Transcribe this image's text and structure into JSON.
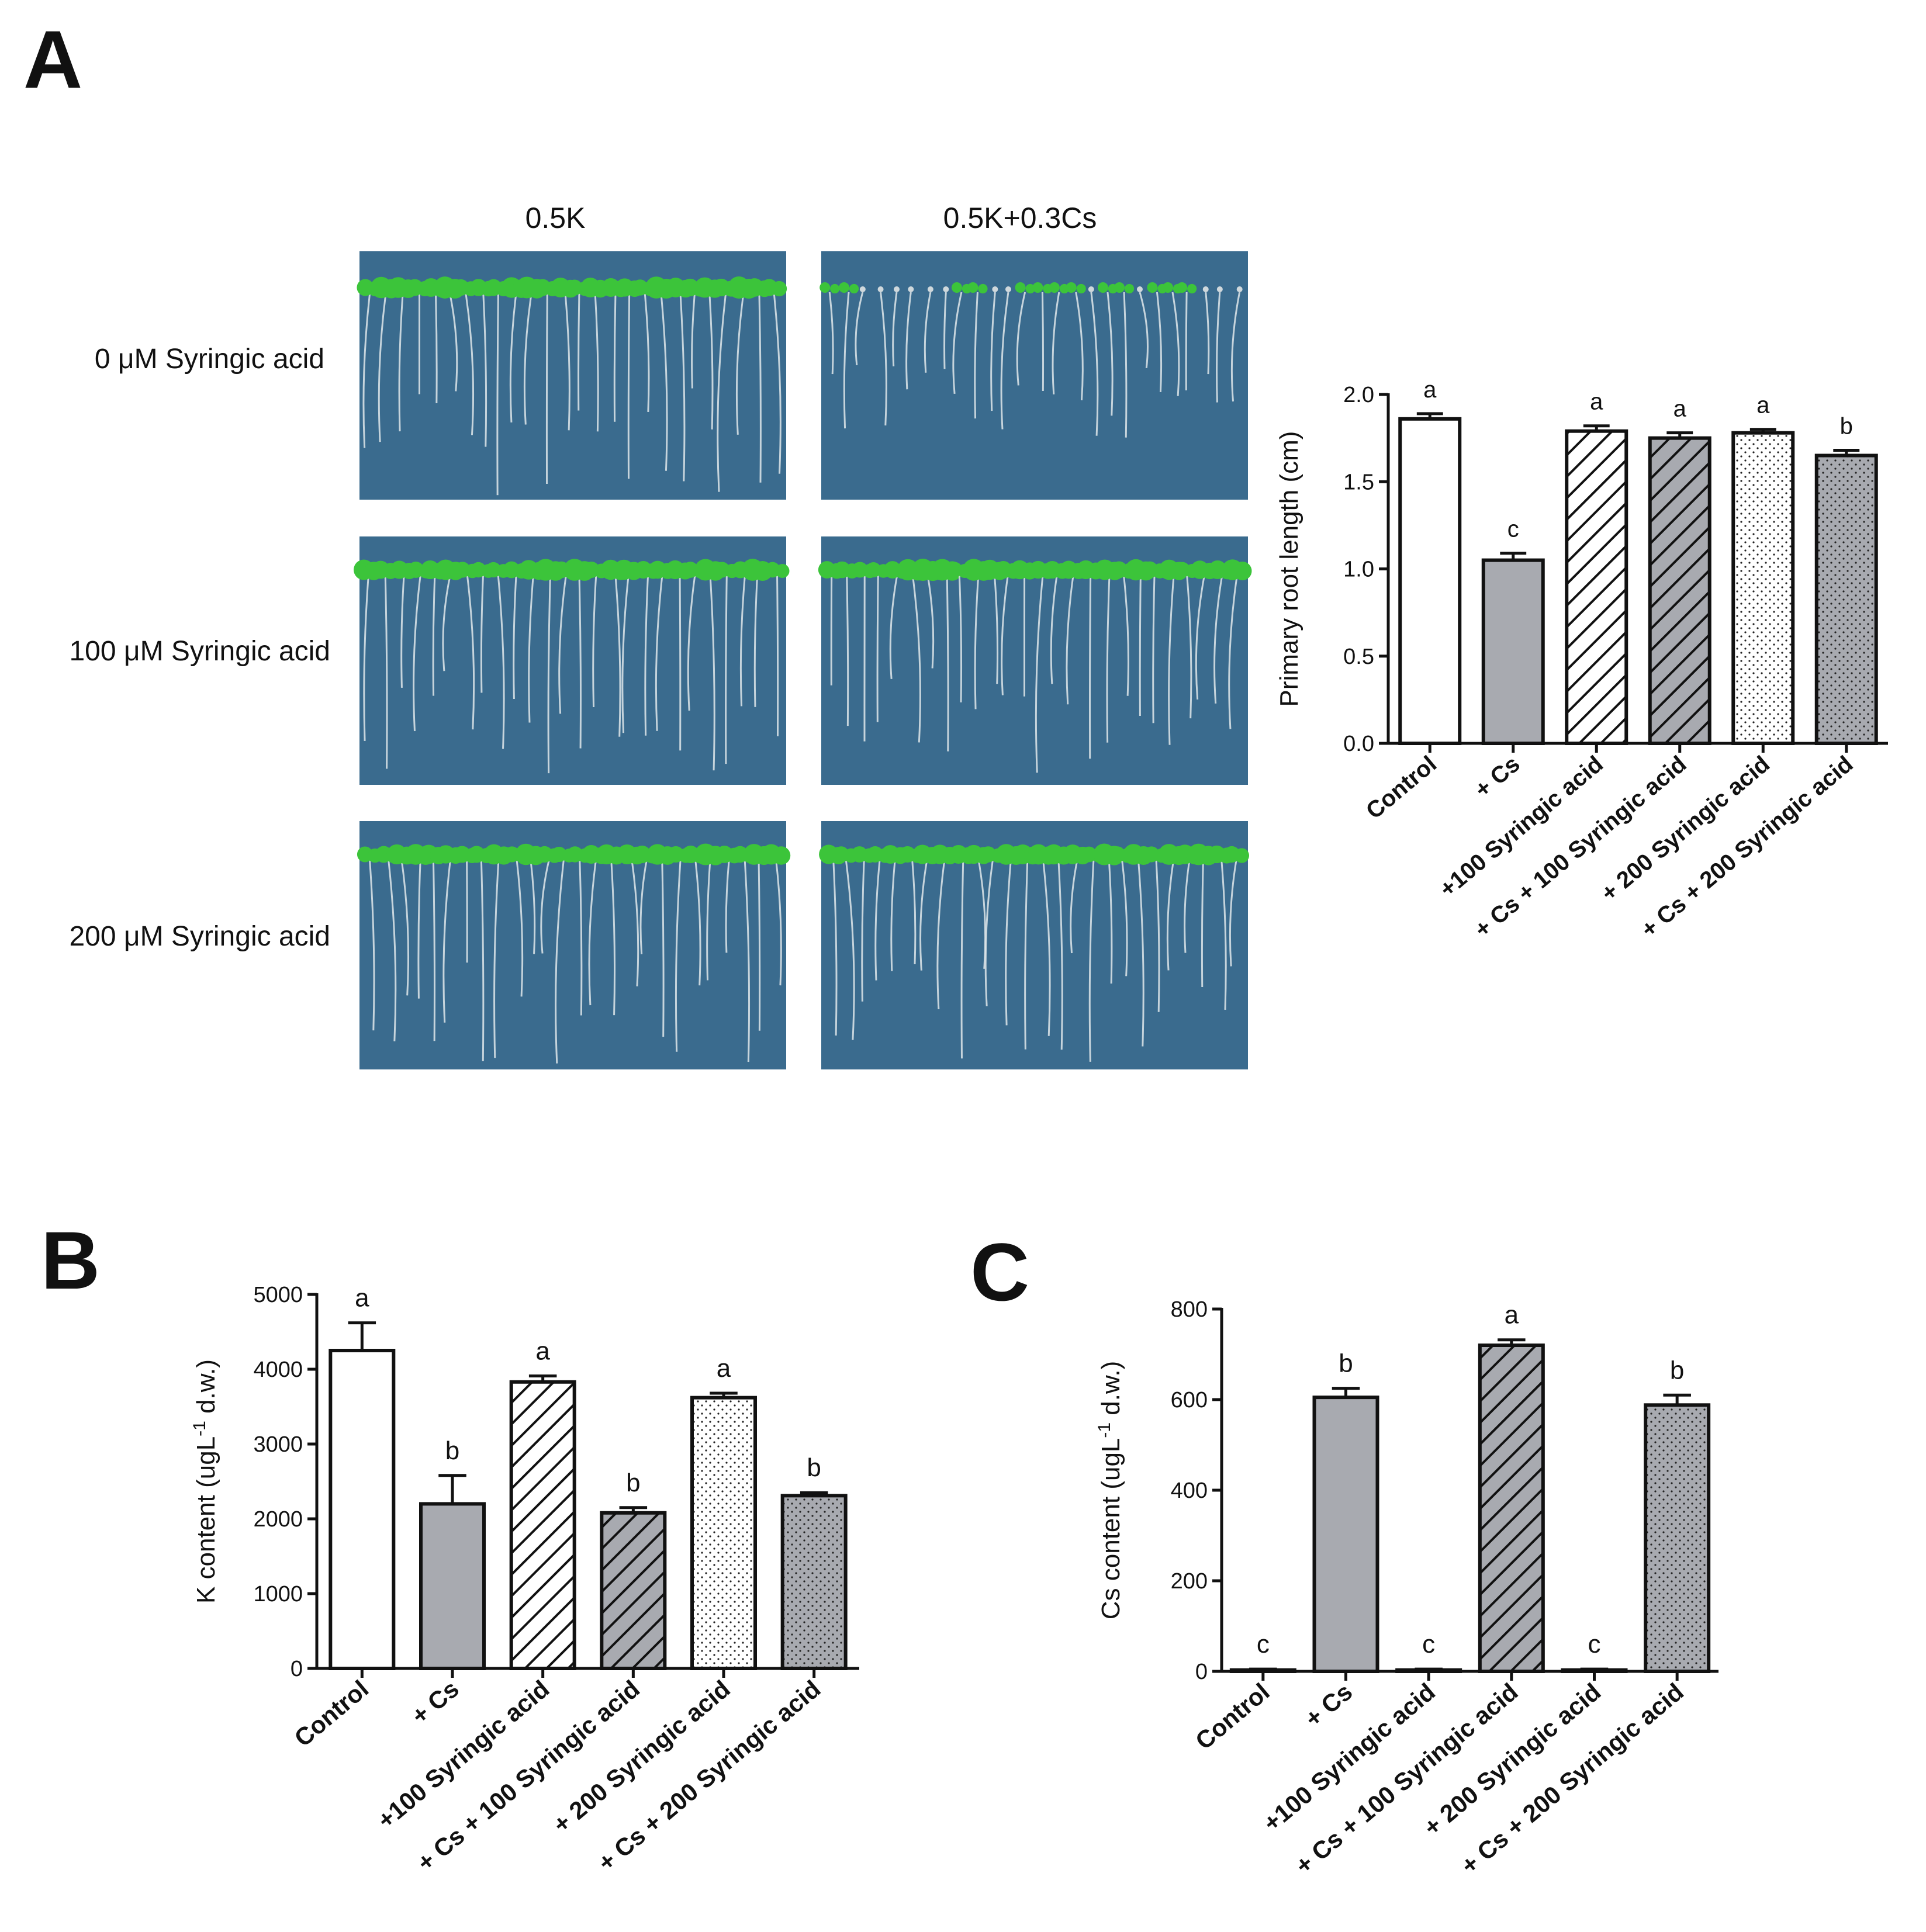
{
  "panels": {
    "A": "A",
    "B": "B",
    "C": "C"
  },
  "photo_grid": {
    "columns": [
      "0.5K",
      "0.5K+0.3Cs"
    ],
    "rows": [
      "0 μM Syringic acid",
      "100 μM Syringic acid",
      "200 μM Syringic acid"
    ],
    "photo_color": "#3a6b8e",
    "leaf_color": "#3cc43a"
  },
  "colors": {
    "white": "#ffffff",
    "gray": "#a8aab0",
    "stroke": "#111111"
  },
  "chart_data": [
    {
      "id": "A",
      "type": "bar",
      "categories": [
        "Control",
        "+ Cs",
        "+100 Syringic acid",
        "+ Cs + 100 Syringic acid",
        "+ 200 Syringic acid",
        "+ Cs + 200 Syringic acid"
      ],
      "values": [
        1.86,
        1.05,
        1.79,
        1.75,
        1.78,
        1.65
      ],
      "errors": [
        0.03,
        0.04,
        0.03,
        0.03,
        0.02,
        0.03
      ],
      "letters": [
        "a",
        "c",
        "a",
        "a",
        "a",
        "b"
      ],
      "fills": [
        "white",
        "gray",
        "white-hatch",
        "gray-hatch",
        "white-dots",
        "gray-dots"
      ],
      "ylabel": "Primary root length (cm)",
      "ylim": [
        0,
        2.0
      ],
      "yticks": [
        0,
        0.5,
        1.0,
        1.5,
        2.0
      ],
      "ytick_labels": [
        "0.0",
        "0.5",
        "1.0",
        "1.5",
        "2.0"
      ]
    },
    {
      "id": "B",
      "type": "bar",
      "categories": [
        "Control",
        "+ Cs",
        "+100 Syringic acid",
        "+ Cs + 100 Syringic acid",
        "+ 200 Syringic acid",
        "+ Cs + 200 Syringic acid"
      ],
      "values": [
        4250,
        2200,
        3830,
        2080,
        3620,
        2310
      ],
      "errors": [
        370,
        380,
        80,
        70,
        60,
        40
      ],
      "letters": [
        "a",
        "b",
        "a",
        "b",
        "a",
        "b"
      ],
      "fills": [
        "white",
        "gray",
        "white-hatch",
        "gray-hatch",
        "white-dots",
        "gray-dots"
      ],
      "ylabel_main": "K content (ugL",
      "ylabel_sup": "-1",
      "ylabel_tail": " d.w.)",
      "ylim": [
        0,
        5000
      ],
      "yticks": [
        0,
        1000,
        2000,
        3000,
        4000,
        5000
      ],
      "ytick_labels": [
        "0",
        "1000",
        "2000",
        "3000",
        "4000",
        "5000"
      ]
    },
    {
      "id": "C",
      "type": "bar",
      "categories": [
        "Control",
        "+ Cs",
        "+100 Syringic acid",
        "+ Cs + 100 Syringic acid",
        "+ 200 Syringic acid",
        "+ Cs + 200 Syringic acid"
      ],
      "values": [
        3,
        605,
        3,
        720,
        3,
        588
      ],
      "errors": [
        2,
        20,
        2,
        12,
        2,
        22
      ],
      "letters": [
        "c",
        "b",
        "c",
        "a",
        "c",
        "b"
      ],
      "fills": [
        "white",
        "gray",
        "white-hatch",
        "gray-hatch",
        "white-dots",
        "gray-dots"
      ],
      "ylabel_main": "Cs content (ugL",
      "ylabel_sup": "-1",
      "ylabel_tail": " d.w.)",
      "ylim": [
        0,
        800
      ],
      "yticks": [
        0,
        200,
        400,
        600,
        800
      ],
      "ytick_labels": [
        "0",
        "200",
        "400",
        "600",
        "800"
      ]
    }
  ]
}
